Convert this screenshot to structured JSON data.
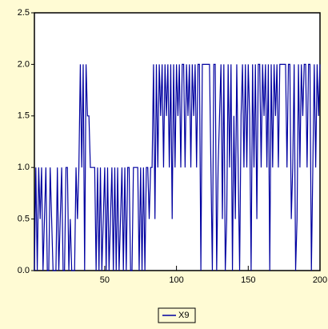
{
  "chart_data": {
    "type": "line",
    "x": [
      1,
      2,
      3,
      4,
      5,
      6,
      7,
      8,
      9,
      10,
      11,
      12,
      13,
      14,
      15,
      16,
      17,
      18,
      19,
      20,
      21,
      22,
      23,
      24,
      25,
      26,
      27,
      28,
      29,
      30,
      31,
      32,
      33,
      34,
      35,
      36,
      37,
      38,
      39,
      40,
      41,
      42,
      43,
      44,
      45,
      46,
      47,
      48,
      49,
      50,
      51,
      52,
      53,
      54,
      55,
      56,
      57,
      58,
      59,
      60,
      61,
      62,
      63,
      64,
      65,
      66,
      67,
      68,
      69,
      70,
      71,
      72,
      73,
      74,
      75,
      76,
      77,
      78,
      79,
      80,
      81,
      82,
      83,
      84,
      85,
      86,
      87,
      88,
      89,
      90,
      91,
      92,
      93,
      94,
      95,
      96,
      97,
      98,
      99,
      100,
      101,
      102,
      103,
      104,
      105,
      106,
      107,
      108,
      109,
      110,
      111,
      112,
      113,
      114,
      115,
      116,
      117,
      118,
      119,
      120,
      121,
      122,
      123,
      124,
      125,
      126,
      127,
      128,
      129,
      130,
      131,
      132,
      133,
      134,
      135,
      136,
      137,
      138,
      139,
      140,
      141,
      142,
      143,
      144,
      145,
      146,
      147,
      148,
      149,
      150,
      151,
      152,
      153,
      154,
      155,
      156,
      157,
      158,
      159,
      160,
      161,
      162,
      163,
      164,
      165,
      166,
      167,
      168,
      169,
      170,
      171,
      172,
      173,
      174,
      175,
      176,
      177,
      178,
      179,
      180,
      181,
      182,
      183,
      184,
      185,
      186,
      187,
      188,
      189,
      190,
      191,
      192,
      193,
      194,
      195,
      196,
      197,
      198,
      199,
      200
    ],
    "series": [
      {
        "name": "X9",
        "color": "#0000a0",
        "values": [
          0,
          1,
          0,
          1,
          0.5,
          1,
          0,
          0.5,
          1,
          0,
          0,
          1,
          0.5,
          0,
          0,
          0,
          1,
          0,
          0.5,
          1,
          0,
          0,
          1,
          1,
          0,
          0.5,
          0,
          0,
          0,
          1,
          0.5,
          1,
          2,
          1,
          2,
          0,
          2,
          1.5,
          1.5,
          1,
          1,
          1,
          1,
          0,
          1,
          0,
          1,
          0,
          0.5,
          1,
          0,
          1,
          0,
          0.5,
          1,
          0,
          1,
          0,
          1,
          0,
          0.5,
          1,
          0,
          1,
          0,
          1,
          1,
          0,
          0,
          1,
          1,
          1,
          1,
          0,
          1,
          0,
          1,
          0,
          1,
          1,
          0.5,
          1,
          1,
          2,
          0.5,
          2,
          1,
          2,
          1.5,
          2,
          1,
          2,
          1.5,
          2,
          1,
          2,
          0.5,
          2,
          1,
          2,
          1.5,
          2,
          1,
          2,
          2,
          1,
          2,
          1.5,
          2,
          1,
          2,
          1.5,
          2,
          1,
          2,
          2,
          0,
          2,
          2,
          2,
          2,
          2,
          2,
          1,
          0,
          2,
          2,
          0,
          1,
          1.5,
          2,
          0.5,
          2,
          0,
          0.5,
          2,
          1,
          2,
          0,
          1.5,
          0.5,
          2,
          1,
          0,
          1.5,
          2,
          1,
          2,
          1,
          2,
          1.5,
          0,
          2,
          1,
          2,
          0.5,
          2,
          2,
          1,
          2,
          1.5,
          2,
          1,
          2,
          0,
          2,
          1,
          2,
          1.5,
          2,
          1,
          2,
          2,
          2,
          2,
          2,
          1,
          2,
          2,
          0.5,
          1,
          2,
          0,
          0.5,
          2,
          1,
          2,
          1.5,
          2,
          2,
          1,
          2,
          2,
          0,
          1,
          2,
          1,
          2,
          1.5,
          2
        ]
      }
    ],
    "xlim": [
      1,
      200
    ],
    "xticks": [
      50,
      100,
      150,
      200
    ],
    "ylim": [
      0,
      2.5
    ],
    "yticks": [
      {
        "value": 0,
        "label": "0.0"
      },
      {
        "value": 0.5,
        "label": "0.5"
      },
      {
        "value": 1,
        "label": "1.0"
      },
      {
        "value": 1.5,
        "label": "1.5"
      },
      {
        "value": 2,
        "label": "2.0"
      },
      {
        "value": 2.5,
        "label": "2.5"
      }
    ]
  }
}
